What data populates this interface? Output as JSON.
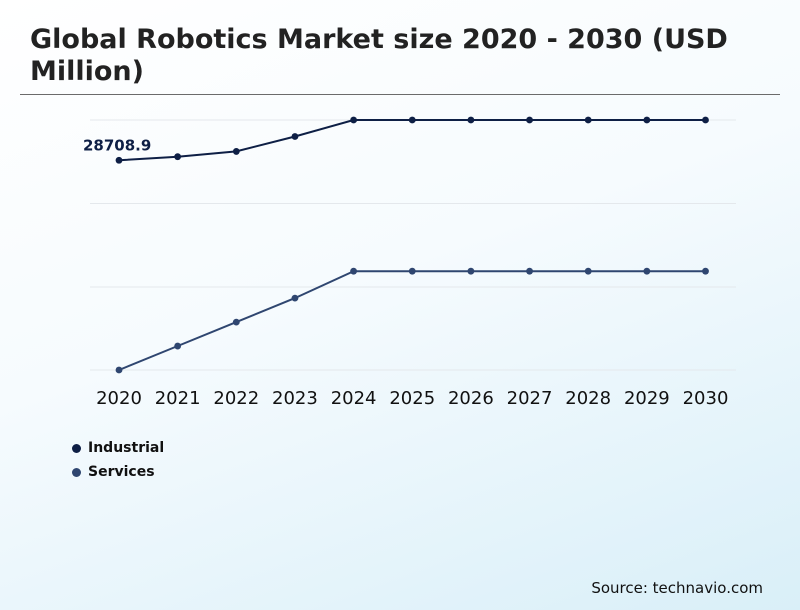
{
  "chart_data": {
    "type": "line",
    "title": "Global Robotics Market size 2020 - 2030 (USD Million)",
    "categories": [
      "2020",
      "2021",
      "2022",
      "2023",
      "2024",
      "2025",
      "2026",
      "2027",
      "2028",
      "2029",
      "2030"
    ],
    "series": [
      {
        "name": "Industrial",
        "color": "#0e1f45",
        "values": [
          28708.9,
          28950,
          29300,
          30300,
          31400,
          31400,
          31400,
          31400,
          31400,
          31400,
          31400
        ]
      },
      {
        "name": "Services",
        "color": "#2f4670",
        "values": [
          14700,
          16300,
          17900,
          19500,
          21300,
          21300,
          21300,
          21300,
          21300,
          21300,
          21300
        ]
      }
    ],
    "annotations": [
      {
        "series": "Industrial",
        "category": "2020",
        "text": "28708.9"
      }
    ],
    "ylim": [
      14700,
      31400
    ],
    "grid": true,
    "legend_position": "bottom-left"
  },
  "source": "Source: technavio.com"
}
